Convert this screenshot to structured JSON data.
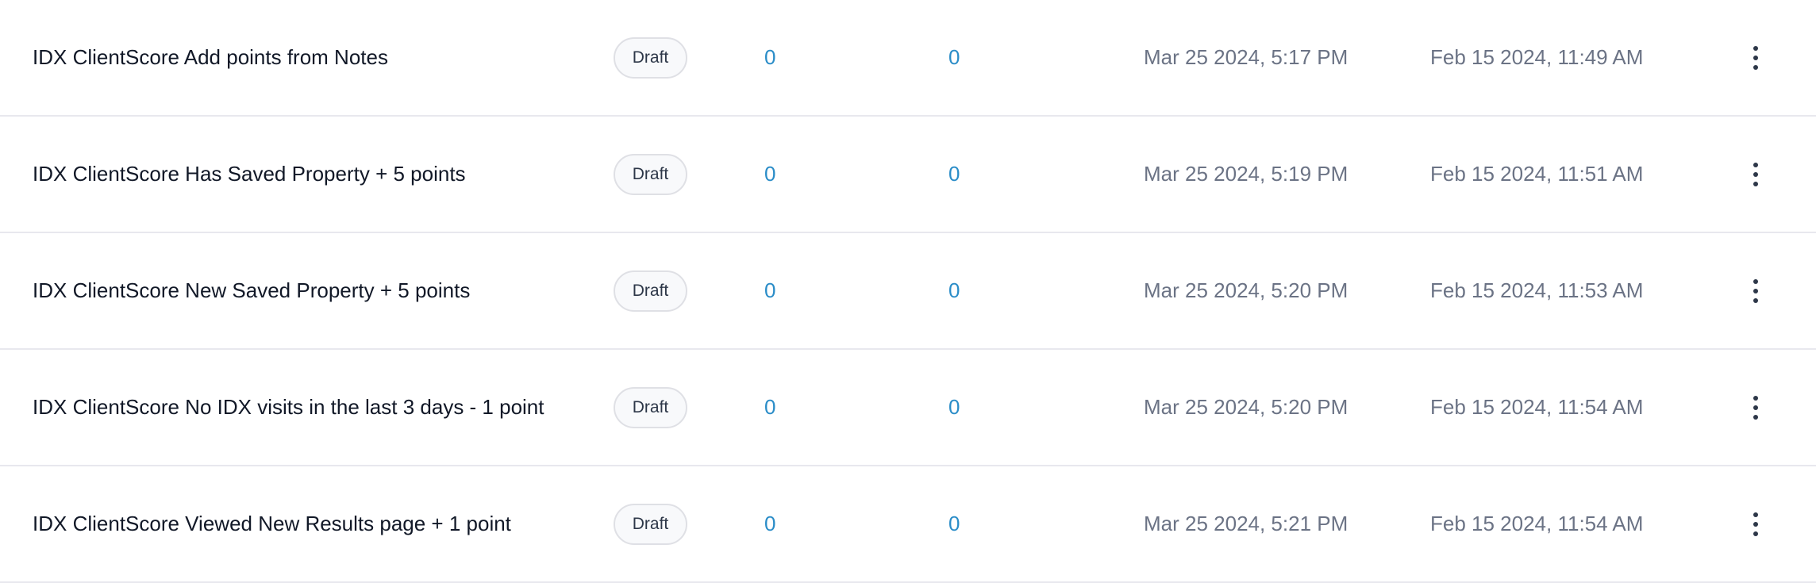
{
  "rows": [
    {
      "name": "IDX ClientScore Add points from Notes",
      "status": "Draft",
      "count_a": "0",
      "count_b": "0",
      "date_a": "Mar 25 2024, 5:17 PM",
      "date_b": "Feb 15 2024, 11:49 AM"
    },
    {
      "name": "IDX ClientScore Has Saved Property + 5 points",
      "status": "Draft",
      "count_a": "0",
      "count_b": "0",
      "date_a": "Mar 25 2024, 5:19 PM",
      "date_b": "Feb 15 2024, 11:51 AM"
    },
    {
      "name": "IDX ClientScore New Saved Property + 5 points",
      "status": "Draft",
      "count_a": "0",
      "count_b": "0",
      "date_a": "Mar 25 2024, 5:20 PM",
      "date_b": "Feb 15 2024, 11:53 AM"
    },
    {
      "name": "IDX ClientScore No IDX visits in the last 3 days - 1 point",
      "status": "Draft",
      "count_a": "0",
      "count_b": "0",
      "date_a": "Mar 25 2024, 5:20 PM",
      "date_b": "Feb 15 2024, 11:54 AM"
    },
    {
      "name": "IDX ClientScore Viewed New Results page + 1 point",
      "status": "Draft",
      "count_a": "0",
      "count_b": "0",
      "date_a": "Mar 25 2024, 5:21 PM",
      "date_b": "Feb 15 2024, 11:54 AM"
    }
  ],
  "icons": {
    "row_menu": "more-vertical-icon"
  },
  "colors": {
    "count_link": "#2b8dc8",
    "date_text": "#6b7385",
    "pill_bg": "#f8f9fb"
  }
}
